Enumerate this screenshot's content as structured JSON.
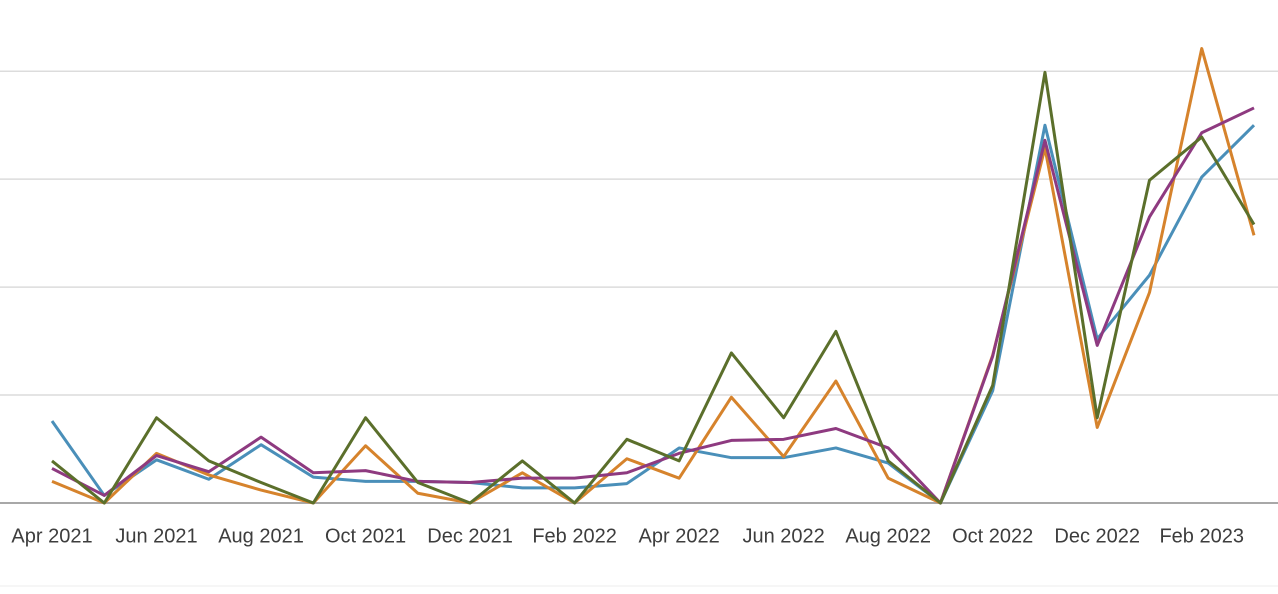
{
  "chart_data": {
    "type": "line",
    "categories": [
      "Apr 2021",
      null,
      "Jun 2021",
      null,
      "Aug 2021",
      null,
      "Oct 2021",
      null,
      "Dec 2021",
      null,
      "Feb 2022",
      null,
      "Apr 2022",
      null,
      "Jun 2022",
      null,
      "Aug 2022",
      null,
      "Oct 2022",
      null,
      "Dec 2022",
      null,
      "Feb 2023",
      null
    ],
    "series": [
      {
        "color": "#4a8fb9",
        "values": [
          76,
          7,
          40,
          22,
          54,
          24,
          20,
          20,
          19,
          14,
          14,
          18,
          51,
          42,
          42,
          51,
          37,
          0,
          104,
          350,
          152,
          211,
          302,
          350
        ]
      },
      {
        "color": "#d6832c",
        "values": [
          20,
          0,
          46,
          26,
          12,
          0,
          53,
          9,
          0,
          28,
          0,
          41,
          23,
          98,
          43,
          113,
          23,
          0,
          137,
          329,
          70,
          195,
          421,
          248
        ]
      },
      {
        "color": "#8e3a80",
        "values": [
          32,
          7,
          44,
          29,
          61,
          28,
          30,
          20,
          19,
          23,
          23,
          28,
          46,
          58,
          59,
          69,
          51,
          0,
          136,
          336,
          146,
          265,
          343,
          366
        ]
      },
      {
        "color": "#5b6f2b",
        "values": [
          39,
          0,
          79,
          39,
          19,
          0,
          79,
          19,
          0,
          39,
          0,
          59,
          39,
          139,
          79,
          159,
          39,
          0,
          109,
          399,
          79,
          299,
          339,
          258
        ]
      }
    ],
    "ylim": [
      0,
      466
    ],
    "yticks": [
      0,
      100,
      200,
      300,
      400
    ],
    "grid": true
  }
}
